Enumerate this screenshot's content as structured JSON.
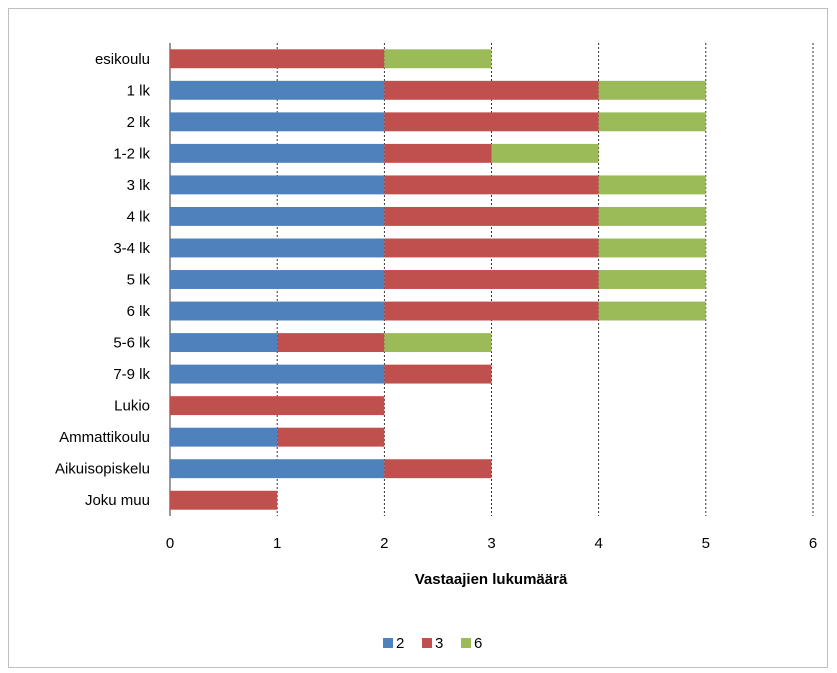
{
  "chart_data": {
    "type": "bar",
    "orientation": "horizontal",
    "stacked": true,
    "categories": [
      "esikoulu",
      "1 lk",
      "2 lk",
      "1-2 lk",
      "3 lk",
      "4 lk",
      "3-4 lk",
      "5 lk",
      "6 lk",
      "5-6 lk",
      "7-9 lk",
      "Lukio",
      "Ammattikoulu",
      "Aikuisopiskelu",
      "Joku muu"
    ],
    "series": [
      {
        "name": "2",
        "color": "#4f81bd",
        "values": [
          0,
          2,
          2,
          2,
          2,
          2,
          2,
          2,
          2,
          1,
          2,
          0,
          1,
          2,
          0
        ]
      },
      {
        "name": "3",
        "color": "#c0504d",
        "values": [
          2,
          2,
          2,
          1,
          2,
          2,
          2,
          2,
          2,
          1,
          1,
          2,
          1,
          1,
          1
        ]
      },
      {
        "name": "6",
        "color": "#9bbb59",
        "values": [
          1,
          1,
          1,
          1,
          1,
          1,
          1,
          1,
          1,
          1,
          0,
          0,
          0,
          0,
          0
        ]
      }
    ],
    "xlim": [
      0,
      6
    ],
    "xticks": [
      "0",
      "1",
      "2",
      "3",
      "4",
      "5",
      "6"
    ],
    "xlabel": "Vastaajien lukumäärä",
    "ylabel": "",
    "title": "",
    "grid": "vertical dashed",
    "legend_position": "bottom"
  }
}
